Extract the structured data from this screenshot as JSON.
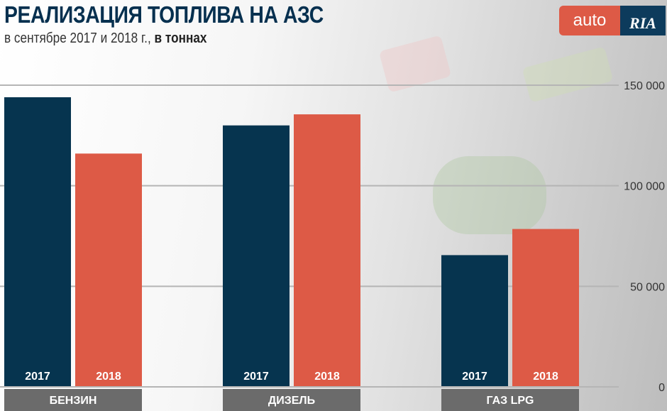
{
  "chart_data": {
    "type": "bar",
    "title": "РЕАЛИЗАЦИЯ ТОПЛИВА НА АЗС",
    "subtitle": "в сентябре 2017 и 2018 г.,",
    "subtitle_bold": "в тоннах",
    "categories": [
      "БЕНЗИН",
      "ДИЗЕЛЬ",
      "ГАЗ  LPG"
    ],
    "series": [
      {
        "name": "2017",
        "color": "#06344f",
        "values": [
          144000,
          130000,
          65500
        ]
      },
      {
        "name": "2018",
        "color": "#dd5a46",
        "values": [
          116000,
          135500,
          78500
        ]
      }
    ],
    "ylim": [
      0,
      150000
    ],
    "yticks": [
      0,
      50000,
      100000,
      150000
    ],
    "ytick_labels": [
      "0",
      "50 000",
      "100 000",
      "150 000"
    ],
    "grid": true,
    "legend": "none; series names printed inside bars",
    "category_label_bg": "#6b6b6b"
  },
  "logo": {
    "left": "auto",
    "right": "RIA",
    "left_color": "#dd5a46",
    "right_color": "#0d3b5c"
  }
}
